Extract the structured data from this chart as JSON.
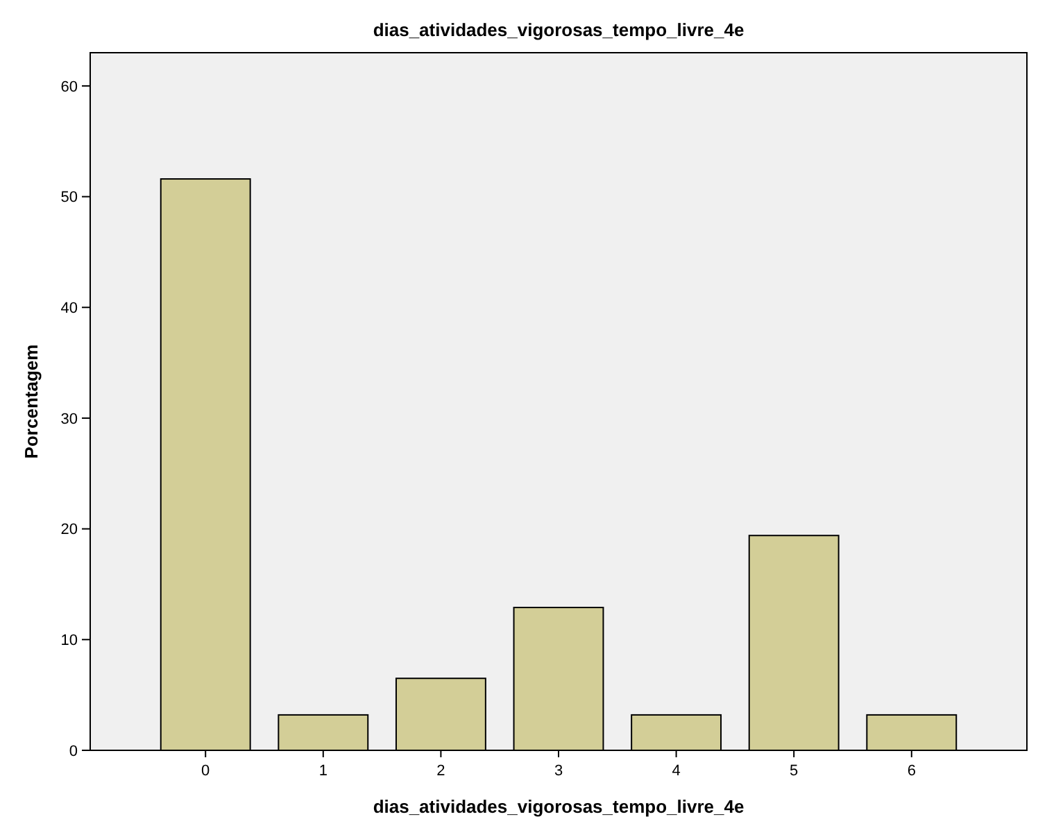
{
  "chart_data": {
    "type": "bar",
    "title": "dias_atividades_vigorosas_tempo_livre_4e",
    "xlabel": "dias_atividades_vigorosas_tempo_livre_4e",
    "ylabel": "Porcentagem",
    "categories": [
      "0",
      "1",
      "2",
      "3",
      "4",
      "5",
      "6"
    ],
    "values": [
      51.6,
      3.2,
      6.5,
      12.9,
      3.2,
      19.4,
      3.2
    ],
    "color": "#d3ce97",
    "ylim": [
      0,
      63
    ],
    "yticks": [
      0,
      10,
      20,
      30,
      40,
      50,
      60
    ],
    "grid": false
  }
}
